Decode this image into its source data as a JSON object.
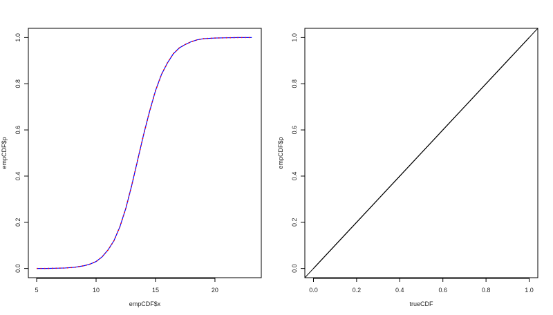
{
  "chart_data": [
    {
      "type": "line",
      "xlabel": "empCDF$x",
      "ylabel": "empCDF$p",
      "xlim": [
        4.3,
        23.9
      ],
      "ylim": [
        -0.04,
        1.04
      ],
      "xticks": [
        5,
        10,
        15,
        20
      ],
      "yticks": [
        0.0,
        0.2,
        0.4,
        0.6,
        0.8,
        1.0
      ],
      "xtick_labels": [
        "5",
        "10",
        "15",
        "20"
      ],
      "ytick_labels": [
        "0.0",
        "0.2",
        "0.4",
        "0.6",
        "0.8",
        "1.0"
      ],
      "grid": false,
      "series": [
        {
          "color": "#0000ff",
          "style": "solid",
          "x": [
            5.0,
            5.8,
            6.6,
            7.4,
            8.2,
            9.0,
            9.5,
            10.0,
            10.5,
            11.0,
            11.5,
            12.0,
            12.5,
            13.0,
            13.5,
            14.0,
            14.5,
            15.0,
            15.5,
            16.0,
            16.5,
            17.0,
            17.5,
            18.0,
            18.5,
            19.0,
            20.0,
            21.0,
            22.0,
            23.1
          ],
          "y": [
            0.0,
            0.0,
            0.001,
            0.002,
            0.005,
            0.012,
            0.019,
            0.03,
            0.05,
            0.08,
            0.12,
            0.18,
            0.26,
            0.36,
            0.47,
            0.58,
            0.68,
            0.77,
            0.84,
            0.89,
            0.93,
            0.955,
            0.97,
            0.982,
            0.99,
            0.995,
            0.998,
            0.999,
            1.0,
            1.0
          ]
        },
        {
          "color": "#ff0000",
          "style": "dotted",
          "x": [
            5.0,
            5.8,
            6.6,
            7.4,
            8.2,
            9.0,
            9.5,
            10.0,
            10.5,
            11.0,
            11.5,
            12.0,
            12.5,
            13.0,
            13.5,
            14.0,
            14.5,
            15.0,
            15.5,
            16.0,
            16.5,
            17.0,
            17.5,
            18.0,
            18.5,
            19.0,
            20.0,
            21.0,
            22.0,
            23.1
          ],
          "y": [
            0.0,
            0.0,
            0.001,
            0.002,
            0.005,
            0.012,
            0.019,
            0.03,
            0.05,
            0.08,
            0.12,
            0.18,
            0.26,
            0.36,
            0.47,
            0.58,
            0.68,
            0.77,
            0.84,
            0.89,
            0.93,
            0.955,
            0.97,
            0.982,
            0.99,
            0.995,
            0.998,
            0.999,
            1.0,
            1.0
          ]
        }
      ]
    },
    {
      "type": "line",
      "xlabel": "trueCDF",
      "ylabel": "empCDF$p",
      "xlim": [
        -0.04,
        1.04
      ],
      "ylim": [
        -0.04,
        1.04
      ],
      "xticks": [
        0.0,
        0.2,
        0.4,
        0.6,
        0.8,
        1.0
      ],
      "yticks": [
        0.0,
        0.2,
        0.4,
        0.6,
        0.8,
        1.0
      ],
      "xtick_labels": [
        "0.0",
        "0.2",
        "0.4",
        "0.6",
        "0.8",
        "1.0"
      ],
      "ytick_labels": [
        "0.0",
        "0.2",
        "0.4",
        "0.6",
        "0.8",
        "1.0"
      ],
      "grid": false,
      "series": [
        {
          "color": "#000000",
          "style": "solid",
          "x": [
            0.0,
            0.1,
            0.2,
            0.3,
            0.4,
            0.5,
            0.6,
            0.7,
            0.8,
            0.9,
            1.0
          ],
          "y": [
            0.0,
            0.1,
            0.2,
            0.3,
            0.4,
            0.5,
            0.6,
            0.7,
            0.8,
            0.9,
            1.0
          ]
        }
      ],
      "reference_line": {
        "type": "abline",
        "intercept": 0,
        "slope": 1,
        "color": "#000000"
      }
    }
  ]
}
